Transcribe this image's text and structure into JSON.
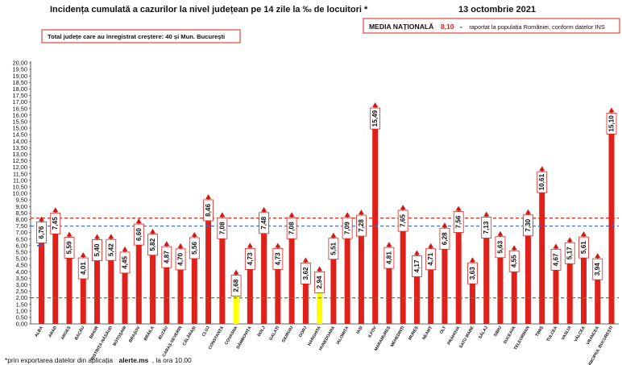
{
  "header": {
    "title": "Incidența cumulată a cazurilor la nivel județean pe 14 zile la ‰ de locuitori *",
    "date": "13 octombrie 2021"
  },
  "note_box": {
    "text": "Total județe care au înregistrat creștere:  40 și Mun. București"
  },
  "national_box": {
    "label": "MEDIA NAȚIONALĂ",
    "value": "8,10",
    "dash": "-",
    "rest": "raportat la populația României, conform datelor INS"
  },
  "footnote": {
    "prefix": "*prin exportarea datelor din aplicația",
    "source": "alerte.ms",
    "suffix": ", la ora 10.00"
  },
  "colors": {
    "bar": "#e0211b",
    "bar_highlight": "#ffff00",
    "arrow": "#d01914",
    "line_national": "#e0211b",
    "line_blue": "#3a6fd1",
    "line_green": "#2a9a2a",
    "tick_marker": "#2b5fd9"
  },
  "chart_data": {
    "type": "bar",
    "categories": [
      "ALBA",
      "ARAD",
      "ARGEȘ",
      "BACĂU",
      "BIHOR",
      "BISTRIȚA-NĂSĂUD",
      "BOTOȘANI",
      "BRAȘOV",
      "BRĂILA",
      "BUZĂU",
      "CARAȘ-SEVERIN",
      "CĂLĂRAȘI",
      "CLUJ",
      "CONSTANȚA",
      "COVASNA",
      "DÂMBOVIȚA",
      "DOLJ",
      "GALAȚI",
      "GIURGIU",
      "GORJ",
      "HARGHITA",
      "HUNEDOARA",
      "IALOMIȚA",
      "IAȘI",
      "ILFOV",
      "MARAMUREȘ",
      "MEHEDINȚI",
      "MUREȘ",
      "NEAMȚ",
      "OLT",
      "PRAHOVA",
      "SATU MARE",
      "SĂLAJ",
      "SIBIU",
      "SUCEAVA",
      "TELEORMAN",
      "TIMIȘ",
      "TULCEA",
      "VASLUI",
      "VÂLCEA",
      "VRANCEA",
      "MUNICIPIUL BUCUREȘTI"
    ],
    "values": [
      6.76,
      7.45,
      5.59,
      4.01,
      5.4,
      5.42,
      4.45,
      6.6,
      5.82,
      4.87,
      4.7,
      5.56,
      8.46,
      7.08,
      2.68,
      4.73,
      7.48,
      4.73,
      7.08,
      3.62,
      2.94,
      5.51,
      7.09,
      7.28,
      15.49,
      4.81,
      7.65,
      4.17,
      4.71,
      6.28,
      7.56,
      3.63,
      7.13,
      5.63,
      4.55,
      7.3,
      10.61,
      4.67,
      5.17,
      5.61,
      3.94,
      15.1
    ],
    "value_labels": [
      "6,76",
      "7,45",
      "5,59",
      "4,01",
      "5,40",
      "5,42",
      "4,45",
      "6,60",
      "5,82",
      "4,87",
      "4,70",
      "5,56",
      "8,46",
      "7,08",
      "2,68",
      "4,73",
      "7,48",
      "4,73",
      "7,08",
      "3,62",
      "2,94",
      "5,51",
      "7,09",
      "7,28",
      "15,49",
      "4,81",
      "7,65",
      "4,17",
      "4,71",
      "6,28",
      "7,56",
      "3,63",
      "7,13",
      "5,63",
      "4,55",
      "7,30",
      "10,61",
      "4,67",
      "5,17",
      "5,61",
      "3,94",
      "15,10"
    ],
    "highlight_categories": [
      "COVASNA",
      "HARGHITA"
    ],
    "increase_arrows": true,
    "ylim": [
      0,
      20
    ],
    "y_tick_step": 0.5,
    "y_tick_labels": [
      "0,00",
      "0,50",
      "1,00",
      "1,50",
      "2,00",
      "2,50",
      "3,00",
      "3,50",
      "4,00",
      "4,50",
      "5,00",
      "5,50",
      "6,00",
      "6,50",
      "7,00",
      "7,50",
      "8,00",
      "8,50",
      "9,00",
      "9,50",
      "10,00",
      "10,50",
      "11,00",
      "11,50",
      "12,00",
      "12,50",
      "13,00",
      "13,50",
      "14,00",
      "14,50",
      "15,00",
      "15,50",
      "16,00",
      "16,50",
      "17,00",
      "17,50",
      "18,00",
      "18,50",
      "19,00",
      "19,50",
      "20,00"
    ],
    "reference_lines": [
      {
        "value": 8.1,
        "style": "dashed",
        "color": "#e0211b"
      },
      {
        "value": 7.5,
        "style": "dashed",
        "color": "#3a6fd1"
      },
      {
        "value": 2.0,
        "style": "dashed",
        "color": "#2a9a2a"
      }
    ],
    "grid": false,
    "xlabel": "",
    "ylabel": ""
  }
}
